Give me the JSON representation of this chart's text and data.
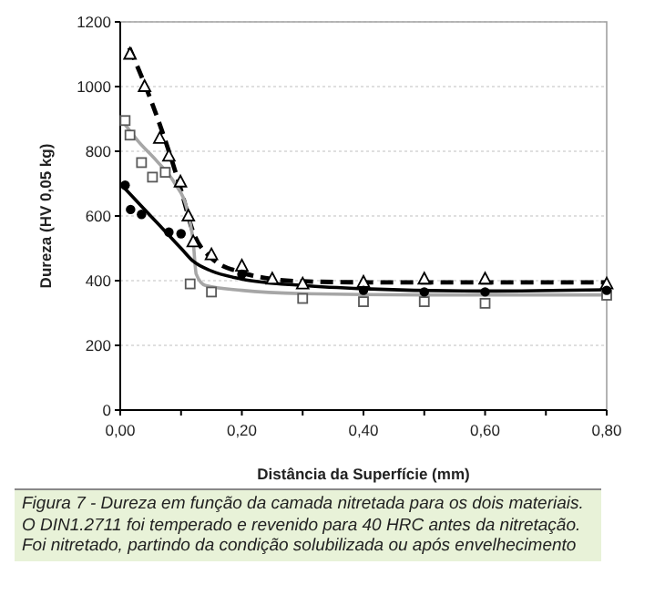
{
  "chart_data": {
    "type": "scatter",
    "xlabel": "Distância da Superfície (mm)",
    "ylabel": "Dureza (HV 0,05 kg)",
    "xlim": [
      0,
      0.8
    ],
    "ylim": [
      0,
      1200
    ],
    "xticks": [
      {
        "value": 0,
        "label": "0,00"
      },
      {
        "value": 0.1,
        "label": null
      },
      {
        "value": 0.2,
        "label": "0,20"
      },
      {
        "value": 0.3,
        "label": null
      },
      {
        "value": 0.4,
        "label": "0,40"
      },
      {
        "value": 0.5,
        "label": null
      },
      {
        "value": 0.6,
        "label": "0,60"
      },
      {
        "value": 0.7,
        "label": null
      },
      {
        "value": 0.8,
        "label": "0,80"
      }
    ],
    "yticks": [
      0,
      200,
      400,
      600,
      800,
      1000,
      1200
    ],
    "grid": "y",
    "series": [
      {
        "type": "line",
        "color": "#000000",
        "line_style": "dashed",
        "marker": "none",
        "x": [
          0.015,
          0.05,
          0.08,
          0.1,
          0.12,
          0.15,
          0.2,
          0.25,
          0.3,
          0.4,
          0.6,
          0.8
        ],
        "values": [
          1120,
          960,
          800,
          680,
          550,
          470,
          425,
          405,
          398,
          395,
          395,
          395
        ]
      },
      {
        "type": "line",
        "color": "#a6a6a6",
        "line_style": "solid",
        "marker": "none",
        "x": [
          0.005,
          0.03,
          0.06,
          0.09,
          0.11,
          0.12,
          0.125,
          0.14,
          0.2,
          0.3,
          0.5,
          0.8
        ],
        "values": [
          890,
          830,
          770,
          700,
          620,
          520,
          420,
          385,
          370,
          360,
          356,
          356
        ]
      },
      {
        "type": "line",
        "color": "#000000",
        "line_style": "solid",
        "marker": "none",
        "x": [
          0.005,
          0.05,
          0.08,
          0.1,
          0.12,
          0.15,
          0.2,
          0.3,
          0.4,
          0.6,
          0.8
        ],
        "values": [
          690,
          600,
          540,
          500,
          460,
          430,
          405,
          385,
          375,
          368,
          372
        ]
      },
      {
        "color": "#000000",
        "marker": "triangle",
        "x": [
          0.016,
          0.04,
          0.065,
          0.08,
          0.099,
          0.112,
          0.12,
          0.15,
          0.2,
          0.25,
          0.3,
          0.4,
          0.5,
          0.6,
          0.8
        ],
        "values": [
          1100,
          1000,
          840,
          785,
          705,
          600,
          520,
          480,
          445,
          405,
          390,
          395,
          405,
          405,
          390
        ]
      },
      {
        "color": "#595959",
        "marker": "square",
        "x": [
          0.008,
          0.016,
          0.035,
          0.053,
          0.074,
          0.115,
          0.15,
          0.3,
          0.4,
          0.5,
          0.6,
          0.8
        ],
        "values": [
          895,
          850,
          765,
          720,
          735,
          390,
          365,
          345,
          335,
          335,
          330,
          355
        ]
      },
      {
        "color": "#000000",
        "marker": "circle",
        "x": [
          0.008,
          0.017,
          0.035,
          0.08,
          0.1,
          0.15,
          0.2,
          0.3,
          0.4,
          0.5,
          0.6,
          0.8
        ],
        "values": [
          695,
          620,
          605,
          550,
          545,
          null,
          420,
          null,
          370,
          365,
          365,
          370
        ]
      }
    ],
    "annotations": [
      "Figura 7 - Dureza em função da camada nitretada para os dois materiais. O DIN1.2711 foi temperado e revenido para 40 HRC antes da nitretação. Foi nitretado, partindo da condição solubilizada ou após envelhecimento"
    ]
  }
}
